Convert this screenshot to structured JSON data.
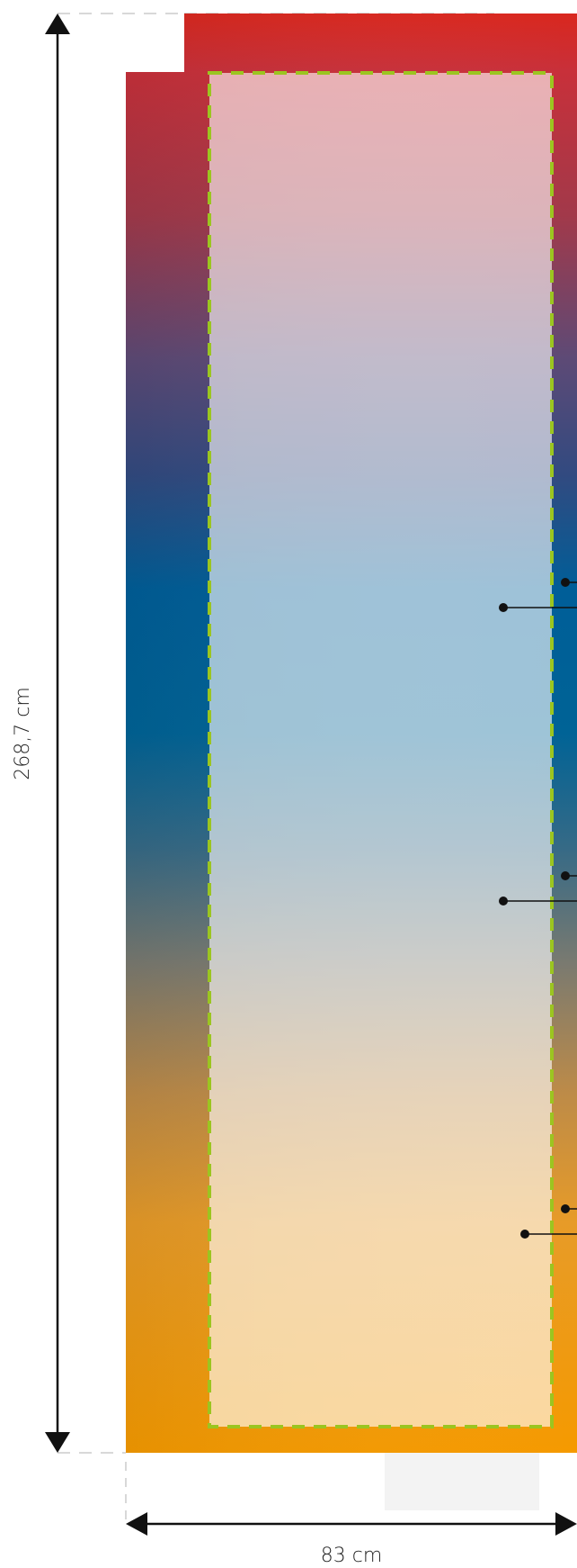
{
  "dimensions": {
    "height_label": "268,7 cm",
    "width_label": "83 cm"
  },
  "colors": {
    "gradient_top": "#D9271E",
    "gradient_upper_mid": "#5A4A78",
    "gradient_mid": "#005F99",
    "gradient_lower_mid": "#7A7A70",
    "gradient_bottom": "#F59A00",
    "safe_zone_border": "#9BC520",
    "arrow": "#111111",
    "guide_line": "#CCCCCC",
    "floor_block": "#F3F3F3"
  }
}
